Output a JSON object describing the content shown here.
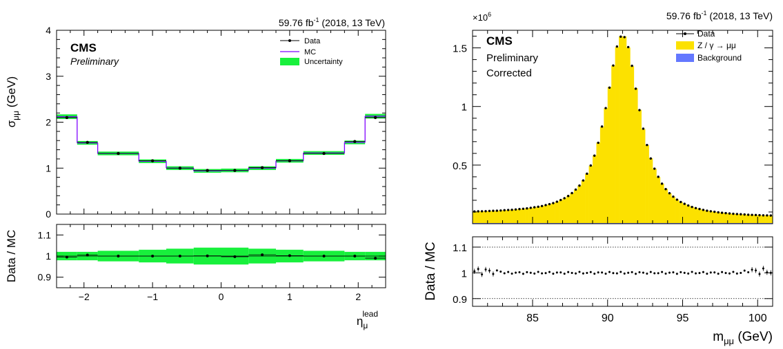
{
  "chart_data": [
    {
      "panel": "left-top",
      "type": "step",
      "experiment": "CMS",
      "status": "Preliminary",
      "lumi": "59.76 fb",
      "lumi_exp": "-1",
      "lumi_tail": " (2018, 13 TeV)",
      "ylabel_main": "σ",
      "ylabel_sub": "μμ",
      "ylabel_unit": " (GeV)",
      "xlabel_main": "η",
      "xlabel_sub": "μ",
      "xlabel_sup": "lead",
      "xlim": [
        -2.4,
        2.4
      ],
      "ylim": [
        0,
        4
      ],
      "yticks": [
        "0",
        "1",
        "2",
        "3",
        "4"
      ],
      "xticks": [
        "−2",
        "−1",
        "0",
        "1",
        "2"
      ],
      "xtick_values": [
        -2,
        -1,
        0,
        1,
        2
      ],
      "ytick_values": [
        0,
        1,
        2,
        3,
        4
      ],
      "bin_edges": [
        -2.4,
        -2.1,
        -1.8,
        -1.2,
        -0.8,
        -0.4,
        0.0,
        0.4,
        0.8,
        1.2,
        1.8,
        2.1,
        2.4
      ],
      "mc_values": [
        2.12,
        1.55,
        1.32,
        1.15,
        1.0,
        0.94,
        0.95,
        1.0,
        1.16,
        1.33,
        1.56,
        2.13
      ],
      "data_x": [
        -2.25,
        -1.95,
        -1.5,
        -1.0,
        -0.6,
        -0.2,
        0.2,
        0.6,
        1.0,
        1.5,
        1.95,
        2.25
      ],
      "data_y": [
        2.1,
        1.56,
        1.32,
        1.16,
        1.0,
        0.95,
        0.95,
        1.01,
        1.16,
        1.32,
        1.58,
        2.1
      ],
      "unc_half": [
        0.05,
        0.04,
        0.04,
        0.04,
        0.04,
        0.04,
        0.04,
        0.04,
        0.04,
        0.04,
        0.04,
        0.05
      ],
      "legend": [
        "Data",
        "MC",
        "Uncertainty"
      ],
      "colors": {
        "data": "#000000",
        "mc": "#7f00ff",
        "unc": "#18f03c"
      }
    },
    {
      "panel": "left-bottom",
      "type": "ratio",
      "ylabel": "Data / MC",
      "ylim": [
        0.85,
        1.15
      ],
      "yticks": [
        "0.9",
        "1",
        "1.1"
      ],
      "ytick_values": [
        0.9,
        1.0,
        1.1
      ],
      "xlim": [
        -2.4,
        2.4
      ],
      "ratio_x": [
        -2.25,
        -1.95,
        -1.5,
        -1.0,
        -0.6,
        -0.2,
        0.2,
        0.6,
        1.0,
        1.5,
        1.95,
        2.25
      ],
      "ratio_y": [
        0.995,
        1.005,
        1.0,
        1.0,
        1.0,
        1.001,
        0.997,
        1.006,
        1.002,
        1.0,
        1.0,
        0.99
      ],
      "band_half": [
        0.02,
        0.02,
        0.025,
        0.03,
        0.035,
        0.04,
        0.04,
        0.035,
        0.03,
        0.025,
        0.02,
        0.02
      ]
    },
    {
      "panel": "right-top",
      "type": "histogram",
      "experiment": "CMS",
      "status": "Preliminary",
      "note": "Corrected",
      "lumi": "59.76 fb",
      "lumi_exp": "-1",
      "lumi_tail": " (2018, 13 TeV)",
      "multiplier_base": "×10",
      "multiplier_exp": "6",
      "xlim": [
        81,
        101
      ],
      "ylim": [
        0,
        1.65
      ],
      "yticks": [
        "0.5",
        "1",
        "1.5"
      ],
      "ytick_values": [
        0.5,
        1.0,
        1.5
      ],
      "xticks": [
        "85",
        "90",
        "95",
        "100"
      ],
      "xtick_values": [
        85,
        90,
        95,
        100
      ],
      "peak_mass": 91.0,
      "peak_height": 1.61,
      "width": 1.55,
      "baseline_low": 0.09,
      "baseline_high": 0.055,
      "bins": 80,
      "legend": [
        "Data",
        "Z / γ → μμ",
        "Background"
      ],
      "colors": {
        "signal": "#fce100",
        "background": "#6478ff",
        "data": "#000000"
      }
    },
    {
      "panel": "right-bottom",
      "type": "ratio",
      "ylabel": "Data / MC",
      "xlabel_main": "m",
      "xlabel_sub": "μμ",
      "xlabel_unit": " (GeV)",
      "ylim": [
        0.87,
        1.14
      ],
      "yticks": [
        "0.9",
        "1",
        "1.1"
      ],
      "ytick_values": [
        0.9,
        1.0,
        1.1
      ],
      "xticks": [
        "85",
        "90",
        "95",
        "100"
      ],
      "xtick_values": [
        85,
        90,
        95,
        100
      ],
      "xlim": [
        81,
        101
      ],
      "ref_lines": [
        0.9,
        1.1
      ],
      "bins": 80
    }
  ]
}
